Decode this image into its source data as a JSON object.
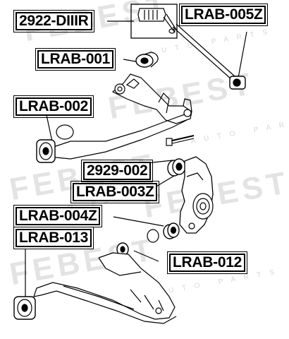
{
  "watermark": {
    "brand": "FEBEST",
    "tagline": "AUTO PARTS"
  },
  "labels": [
    {
      "id": "2922-diiir",
      "text": "2922-DIIIR"
    },
    {
      "id": "lrab-005z",
      "text": "LRAB-005Z"
    },
    {
      "id": "lrab-001",
      "text": "LRAB-001"
    },
    {
      "id": "lrab-002",
      "text": "LRAB-002"
    },
    {
      "id": "2929-002",
      "text": "2929-002"
    },
    {
      "id": "lrab-003z",
      "text": "LRAB-003Z"
    },
    {
      "id": "lrab-004z",
      "text": "LRAB-004Z"
    },
    {
      "id": "lrab-013",
      "text": "LRAB-013"
    },
    {
      "id": "lrab-012",
      "text": "LRAB-012"
    }
  ]
}
